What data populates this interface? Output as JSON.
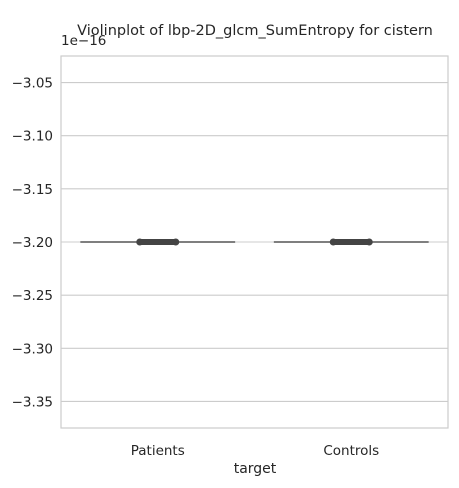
{
  "chart_data": {
    "type": "violin",
    "title": "Violinplot of lbp-2D_glcm_SumEntropy for cistern",
    "xlabel": "target",
    "ylabel": "",
    "offset_label": "1e−16",
    "y_scale_exponent": -16,
    "categories": [
      "Patients",
      "Controls"
    ],
    "ylim": [
      -3.375,
      -3.025
    ],
    "y_ticks": [
      -3.05,
      -3.1,
      -3.15,
      -3.2,
      -3.25,
      -3.3,
      -3.35
    ],
    "y_tick_labels": [
      "−3.05",
      "−3.10",
      "−3.15",
      "−3.20",
      "−3.25",
      "−3.30",
      "−3.35"
    ],
    "values": [
      -3.2,
      -3.2
    ],
    "grid": true,
    "colors": {
      "grid": "#cccccc",
      "axis_frame": "#cccccc",
      "mark": "#444444",
      "median_line": "#555555"
    }
  }
}
